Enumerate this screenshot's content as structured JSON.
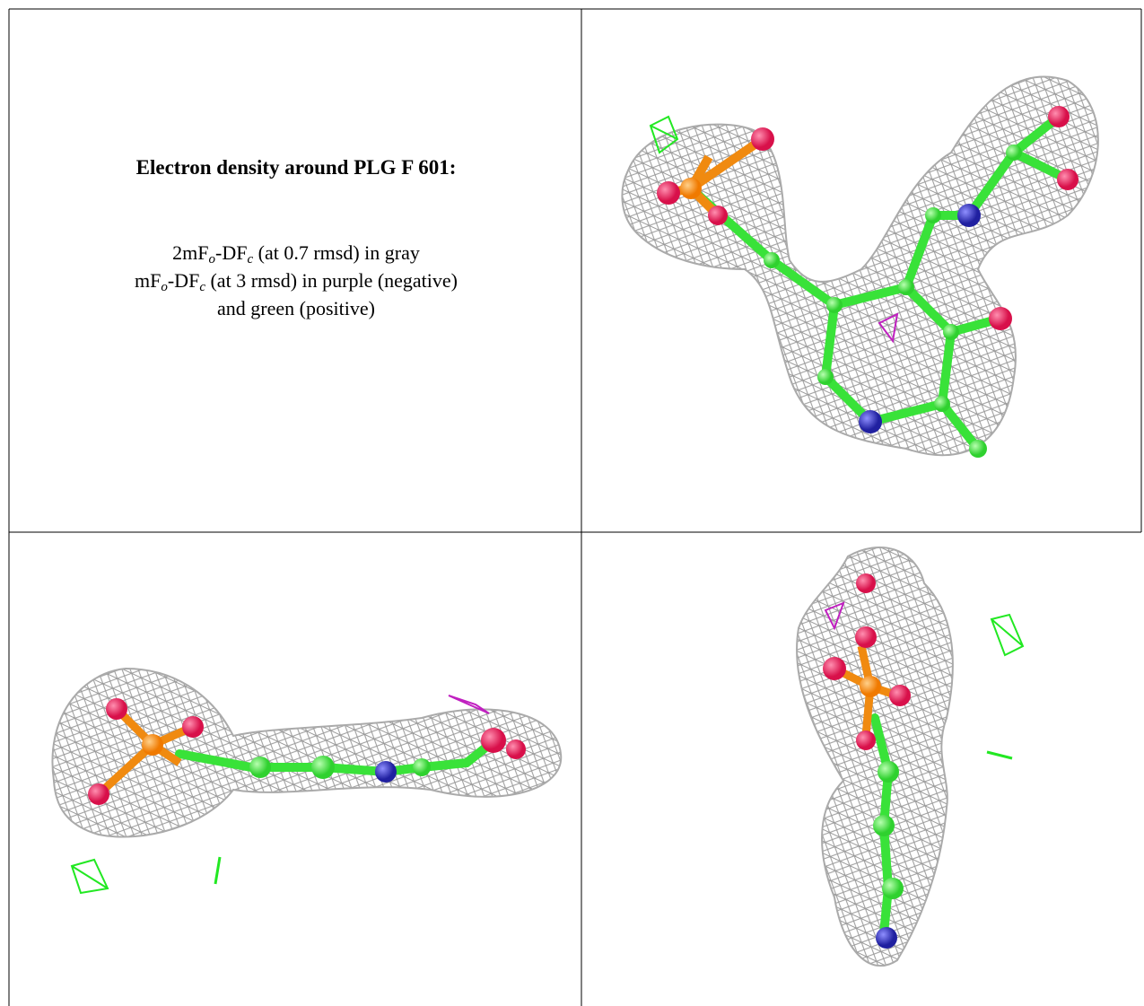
{
  "caption": {
    "title": "Electron density around PLG F 601:",
    "lines": [
      [
        "2mF",
        "o",
        "-DF",
        "c",
        " (at 0.7 rmsd) in gray"
      ],
      [
        "mF",
        "o",
        "-DF",
        "c",
        " (at 3 rmsd) in purple (negative)"
      ],
      [
        "and green (positive)"
      ]
    ]
  }
}
